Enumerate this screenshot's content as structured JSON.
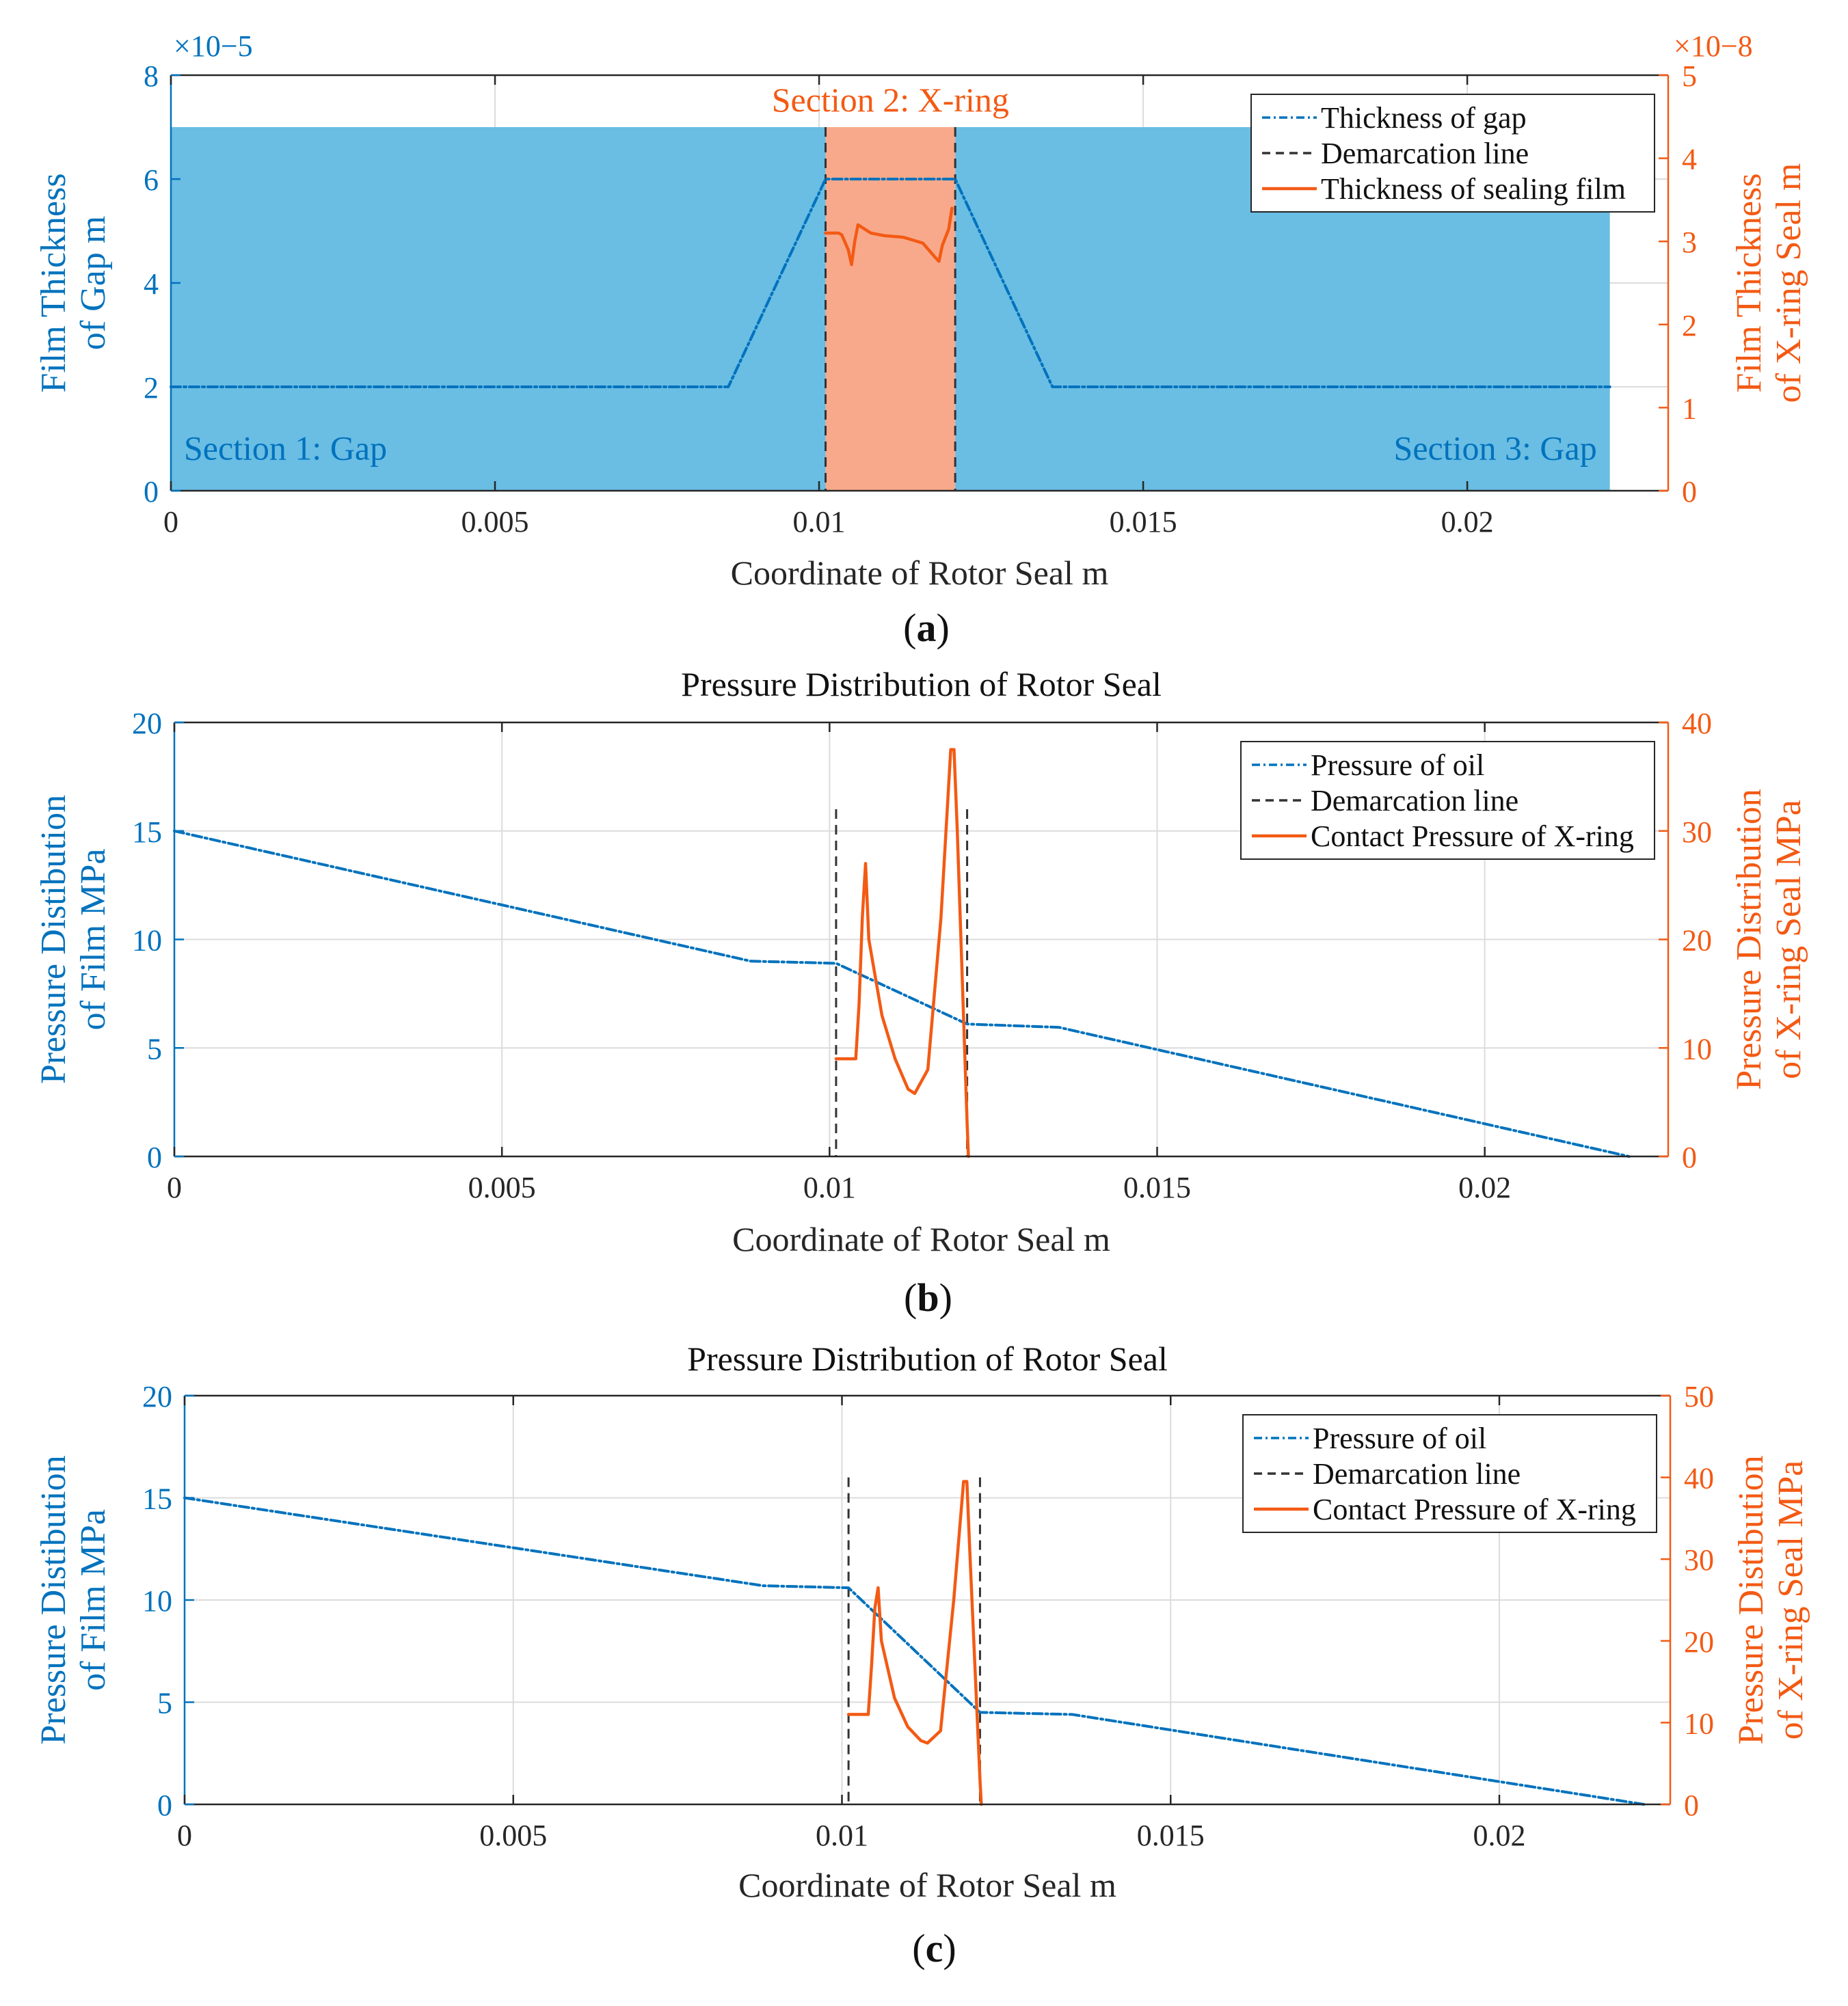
{
  "figure": {
    "colors": {
      "blue": "#0072BD",
      "orange": "#F35A14",
      "dashedGray": "#333333",
      "gapFill": "#6ABDE3",
      "xringFill": "#F9A98B",
      "grid": "#DCDCDC",
      "axis": "#262626"
    }
  },
  "chart_data": [
    {
      "id": "a",
      "type": "line",
      "panel_label": "(a)",
      "title": "",
      "xlabel": "Coordinate of Rotor Seal m",
      "ylabel_left": [
        "Film Thickness",
        "of Gap m"
      ],
      "ylabel_right": [
        "Film Thickness",
        "of X-ring Seal m"
      ],
      "xlim": [
        0,
        0.0231
      ],
      "ylim_left": [
        0,
        8
      ],
      "ylim_right": [
        0,
        5
      ],
      "left_exponent": "×10−5",
      "right_exponent": "×10−8",
      "xticks": [
        0,
        0.005,
        0.01,
        0.015,
        0.02
      ],
      "xtick_labels": [
        "0",
        "0.005",
        "0.01",
        "0.015",
        "0.02"
      ],
      "yticks_left": [
        0,
        2,
        4,
        6,
        8
      ],
      "ytick_labels_left": [
        "0",
        "2",
        "4",
        "6",
        "8"
      ],
      "yticks_right": [
        0,
        1,
        2,
        3,
        4,
        5
      ],
      "ytick_labels_right": [
        "0",
        "1",
        "2",
        "3",
        "4",
        "5"
      ],
      "grid": true,
      "legend_position": "top-right",
      "regions": [
        {
          "name": "Section 1: Gap",
          "x0": 0,
          "x1": 0.0101,
          "ytop": 7,
          "fill": "gap"
        },
        {
          "name": "Section 2: X-ring",
          "x0": 0.0101,
          "x1": 0.0121,
          "ytop": 7,
          "fill": "xring"
        },
        {
          "name": "Section 3: Gap",
          "x0": 0.0121,
          "x1": 0.0222,
          "ytop": 7,
          "fill": "gap"
        }
      ],
      "region_labels": [
        {
          "text": "Section 1: Gap",
          "x": 0.0002,
          "y": 0.6,
          "anchor": "start",
          "color": "blue"
        },
        {
          "text": "Section 2: X-ring",
          "x": 0.0111,
          "y": 7.3,
          "anchor": "middle",
          "color": "orange"
        },
        {
          "text": "Section 3: Gap",
          "x": 0.022,
          "y": 0.6,
          "anchor": "end",
          "color": "blue"
        }
      ],
      "demarcation_x": [
        0.0101,
        0.0121
      ],
      "demarcation_y": [
        0,
        7
      ],
      "series": [
        {
          "name": "Thickness of gap",
          "axis": "left",
          "style": "dashdot",
          "color": "blue",
          "x": [
            0,
            0.0086,
            0.0101,
            0.0121,
            0.0136,
            0.0222
          ],
          "y": [
            2,
            2,
            6,
            6,
            2,
            2
          ]
        },
        {
          "name": "Demarcation line",
          "axis": "left",
          "style": "dashed",
          "color": "dashedGray",
          "x": [],
          "y": []
        },
        {
          "name": "Thickness of sealing film",
          "axis": "right",
          "style": "solid",
          "color": "orange",
          "x": [
            0.0101,
            0.0103,
            0.01035,
            0.01045,
            0.0105,
            0.01055,
            0.0106,
            0.0108,
            0.011,
            0.0113,
            0.0116,
            0.0118,
            0.01185,
            0.0119,
            0.012,
            0.01205
          ],
          "y": [
            3.1,
            3.1,
            3.08,
            2.9,
            2.72,
            3.0,
            3.2,
            3.1,
            3.07,
            3.05,
            2.98,
            2.8,
            2.76,
            2.95,
            3.15,
            3.4
          ]
        }
      ]
    },
    {
      "id": "b",
      "type": "line",
      "panel_label": "(b)",
      "title": "Pressure Distribution of Rotor Seal",
      "xlabel": "Coordinate of Rotor Seal m",
      "ylabel_left": [
        "Pressure Distibution",
        "of Film MPa"
      ],
      "ylabel_right": [
        "Pressure Distribution",
        "of X-ring Seal MPa"
      ],
      "xlim": [
        0,
        0.0228
      ],
      "ylim_left": [
        0,
        20
      ],
      "ylim_right": [
        0,
        40
      ],
      "xticks": [
        0,
        0.005,
        0.01,
        0.015,
        0.02
      ],
      "xtick_labels": [
        "0",
        "0.005",
        "0.01",
        "0.015",
        "0.02"
      ],
      "yticks_left": [
        0,
        5,
        10,
        15,
        20
      ],
      "ytick_labels_left": [
        "0",
        "5",
        "10",
        "15",
        "20"
      ],
      "yticks_right": [
        0,
        10,
        20,
        30,
        40
      ],
      "ytick_labels_right": [
        "0",
        "10",
        "20",
        "30",
        "40"
      ],
      "grid": true,
      "legend_position": "top-right",
      "regions": [],
      "region_labels": [],
      "demarcation_x": [
        0.0101,
        0.0121
      ],
      "demarcation_y": [
        0,
        16
      ],
      "series": [
        {
          "name": "Pressure of oil",
          "axis": "left",
          "style": "dashdot",
          "color": "blue",
          "x": [
            0,
            0.0088,
            0.0101,
            0.0121,
            0.0135,
            0.0222
          ],
          "y": [
            15,
            9.0,
            8.9,
            6.1,
            5.95,
            0
          ]
        },
        {
          "name": "Demarcation line",
          "axis": "left",
          "style": "dashed",
          "color": "dashedGray",
          "x": [],
          "y": []
        },
        {
          "name": "Contact Pressure of X-ring",
          "axis": "right",
          "style": "solid",
          "color": "orange",
          "x": [
            0.0101,
            0.0104,
            0.01045,
            0.0105,
            0.01055,
            0.0106,
            0.0108,
            0.011,
            0.0112,
            0.0113,
            0.0115,
            0.0117,
            0.01185,
            0.0119,
            0.01195,
            0.0121,
            0.01212
          ],
          "y": [
            9,
            9,
            14,
            22,
            27,
            20,
            13,
            9,
            6.2,
            5.8,
            8,
            22,
            37.5,
            37.5,
            30,
            3,
            0
          ]
        }
      ]
    },
    {
      "id": "c",
      "type": "line",
      "panel_label": "(c)",
      "title": "Pressure Distribution of Rotor Seal",
      "xlabel": "Coordinate of Rotor Seal m",
      "ylabel_left": [
        "Pressure Distibution",
        "of Film MPa"
      ],
      "ylabel_right": [
        "Pressure Distibution",
        "of X-ring Seal MPa"
      ],
      "xlim": [
        0,
        0.0226
      ],
      "ylim_left": [
        0,
        20
      ],
      "ylim_right": [
        0,
        50
      ],
      "xticks": [
        0,
        0.005,
        0.01,
        0.015,
        0.02
      ],
      "xtick_labels": [
        "0",
        "0.005",
        "0.01",
        "0.015",
        "0.02"
      ],
      "yticks_left": [
        0,
        5,
        10,
        15,
        20
      ],
      "ytick_labels_left": [
        "0",
        "5",
        "10",
        "15",
        "20"
      ],
      "yticks_right": [
        0,
        10,
        20,
        30,
        40,
        50
      ],
      "ytick_labels_right": [
        "0",
        "10",
        "20",
        "30",
        "40",
        "50"
      ],
      "grid": true,
      "legend_position": "top-right",
      "regions": [],
      "region_labels": [],
      "demarcation_x": [
        0.0101,
        0.0121
      ],
      "demarcation_y": [
        0,
        16
      ],
      "series": [
        {
          "name": "Pressure of oil",
          "axis": "left",
          "style": "dashdot",
          "color": "blue",
          "x": [
            0,
            0.0088,
            0.0101,
            0.0121,
            0.0135,
            0.0222
          ],
          "y": [
            15,
            10.7,
            10.6,
            4.5,
            4.4,
            0
          ]
        },
        {
          "name": "Demarcation line",
          "axis": "left",
          "style": "dashed",
          "color": "dashedGray",
          "x": [],
          "y": []
        },
        {
          "name": "Contact Pressure of X-ring",
          "axis": "right",
          "style": "solid",
          "color": "orange",
          "x": [
            0.0101,
            0.0104,
            0.01045,
            0.0105,
            0.01055,
            0.0106,
            0.0108,
            0.011,
            0.0112,
            0.0113,
            0.0115,
            0.0117,
            0.01185,
            0.0119,
            0.01195,
            0.0121,
            0.01212
          ],
          "y": [
            11,
            11,
            17,
            24,
            26.5,
            20,
            13,
            9.5,
            7.8,
            7.5,
            9,
            25,
            39.5,
            39.5,
            30,
            3,
            0
          ]
        }
      ]
    }
  ]
}
